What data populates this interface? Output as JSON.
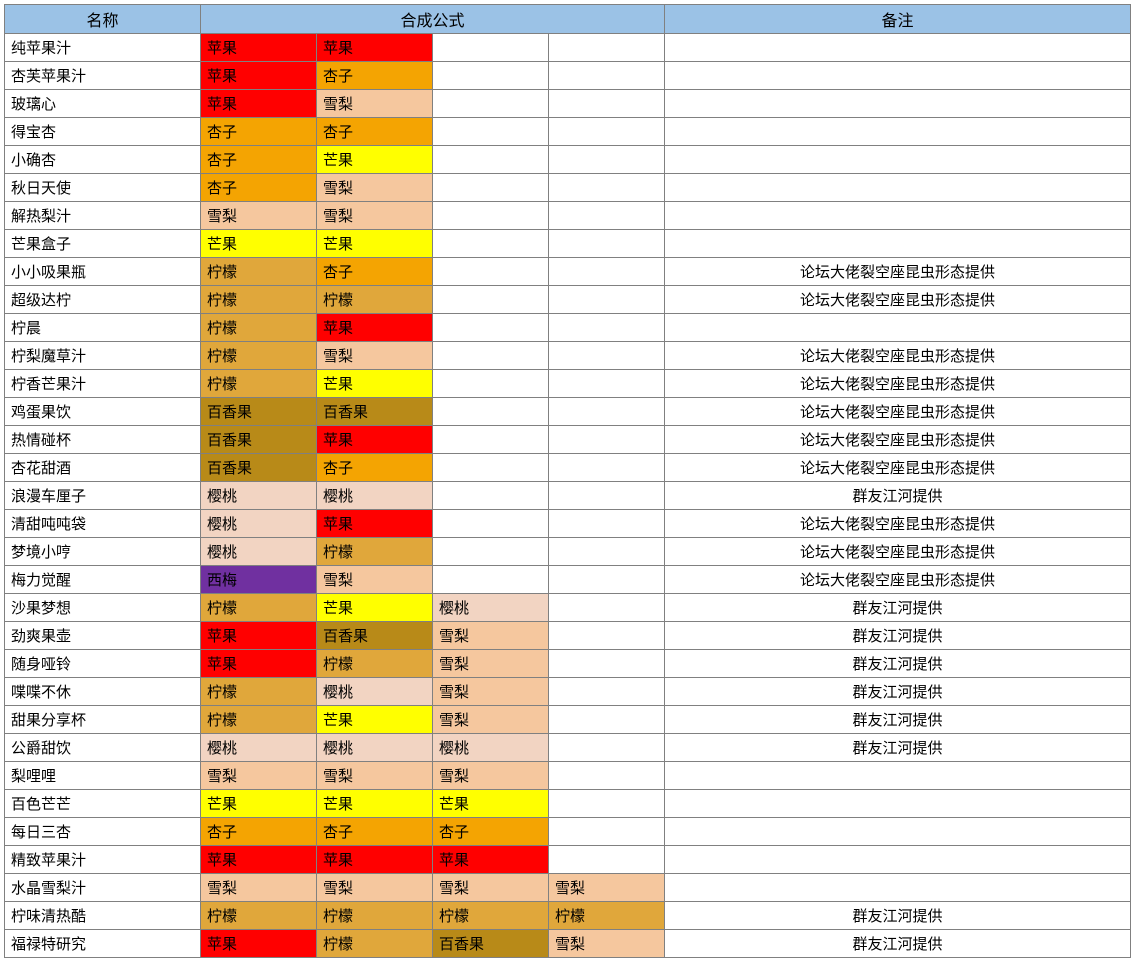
{
  "colors": {
    "header_bg": "#9bc2e6",
    "header_fg": "#000000",
    "row_bg": "#ffffff",
    "row_fg": "#000000",
    "border": "#808080"
  },
  "ingredient_colors": {
    "苹果": "#ff0000",
    "杏子": "#f4a402",
    "雪梨": "#f5c79e",
    "芒果": "#ffff00",
    "柠檬": "#e0a73b",
    "百香果": "#b88a18",
    "樱桃": "#f2d4c2",
    "西梅": "#7030a0"
  },
  "headers": {
    "name": "名称",
    "formula": "合成公式",
    "remark": "备注"
  },
  "remark_source_a": "论坛大佬裂空座昆虫形态提供",
  "remark_source_b": "群友江河提供",
  "rows": [
    {
      "name": "纯苹果汁",
      "ings": [
        "苹果",
        "苹果"
      ],
      "remark": ""
    },
    {
      "name": "杏芙苹果汁",
      "ings": [
        "苹果",
        "杏子"
      ],
      "remark": ""
    },
    {
      "name": "玻璃心",
      "ings": [
        "苹果",
        "雪梨"
      ],
      "remark": ""
    },
    {
      "name": "得宝杏",
      "ings": [
        "杏子",
        "杏子"
      ],
      "remark": ""
    },
    {
      "name": "小确杏",
      "ings": [
        "杏子",
        "芒果"
      ],
      "remark": ""
    },
    {
      "name": "秋日天使",
      "ings": [
        "杏子",
        "雪梨"
      ],
      "remark": ""
    },
    {
      "name": "解热梨汁",
      "ings": [
        "雪梨",
        "雪梨"
      ],
      "remark": ""
    },
    {
      "name": "芒果盒子",
      "ings": [
        "芒果",
        "芒果"
      ],
      "remark": ""
    },
    {
      "name": "小小吸果瓶",
      "ings": [
        "柠檬",
        "杏子"
      ],
      "remark": "论坛大佬裂空座昆虫形态提供"
    },
    {
      "name": "超级达柠",
      "ings": [
        "柠檬",
        "柠檬"
      ],
      "remark": "论坛大佬裂空座昆虫形态提供"
    },
    {
      "name": "柠晨",
      "ings": [
        "柠檬",
        "苹果"
      ],
      "remark": ""
    },
    {
      "name": "柠梨魔草汁",
      "ings": [
        "柠檬",
        "雪梨"
      ],
      "remark": "论坛大佬裂空座昆虫形态提供"
    },
    {
      "name": "柠香芒果汁",
      "ings": [
        "柠檬",
        "芒果"
      ],
      "remark": "论坛大佬裂空座昆虫形态提供"
    },
    {
      "name": "鸡蛋果饮",
      "ings": [
        "百香果",
        "百香果"
      ],
      "remark": "论坛大佬裂空座昆虫形态提供"
    },
    {
      "name": "热情碰杯",
      "ings": [
        "百香果",
        "苹果"
      ],
      "remark": "论坛大佬裂空座昆虫形态提供"
    },
    {
      "name": "杏花甜酒",
      "ings": [
        "百香果",
        "杏子"
      ],
      "remark": "论坛大佬裂空座昆虫形态提供"
    },
    {
      "name": "浪漫车厘子",
      "ings": [
        "樱桃",
        "樱桃"
      ],
      "remark": "群友江河提供"
    },
    {
      "name": "清甜吨吨袋",
      "ings": [
        "樱桃",
        "苹果"
      ],
      "remark": "论坛大佬裂空座昆虫形态提供"
    },
    {
      "name": "梦境小哼",
      "ings": [
        "樱桃",
        "柠檬"
      ],
      "remark": "论坛大佬裂空座昆虫形态提供"
    },
    {
      "name": "梅力觉醒",
      "ings": [
        "西梅",
        "雪梨"
      ],
      "remark": "论坛大佬裂空座昆虫形态提供"
    },
    {
      "name": "沙果梦想",
      "ings": [
        "柠檬",
        "芒果",
        "樱桃"
      ],
      "remark": "群友江河提供"
    },
    {
      "name": "劲爽果壶",
      "ings": [
        "苹果",
        "百香果",
        "雪梨"
      ],
      "remark": "群友江河提供"
    },
    {
      "name": "随身哑铃",
      "ings": [
        "苹果",
        "柠檬",
        "雪梨"
      ],
      "remark": "群友江河提供"
    },
    {
      "name": "喋喋不休",
      "ings": [
        "柠檬",
        "樱桃",
        "雪梨"
      ],
      "remark": "群友江河提供"
    },
    {
      "name": "甜果分享杯",
      "ings": [
        "柠檬",
        "芒果",
        "雪梨"
      ],
      "remark": "群友江河提供"
    },
    {
      "name": "公爵甜饮",
      "ings": [
        "樱桃",
        "樱桃",
        "樱桃"
      ],
      "remark": "群友江河提供"
    },
    {
      "name": "梨哩哩",
      "ings": [
        "雪梨",
        "雪梨",
        "雪梨"
      ],
      "remark": ""
    },
    {
      "name": "百色芒芒",
      "ings": [
        "芒果",
        "芒果",
        "芒果"
      ],
      "remark": ""
    },
    {
      "name": "每日三杏",
      "ings": [
        "杏子",
        "杏子",
        "杏子"
      ],
      "remark": ""
    },
    {
      "name": "精致苹果汁",
      "ings": [
        "苹果",
        "苹果",
        "苹果"
      ],
      "remark": ""
    },
    {
      "name": "水晶雪梨汁",
      "ings": [
        "雪梨",
        "雪梨",
        "雪梨",
        "雪梨"
      ],
      "remark": ""
    },
    {
      "name": "柠味清热酷",
      "ings": [
        "柠檬",
        "柠檬",
        "柠檬",
        "柠檬"
      ],
      "remark": "群友江河提供"
    },
    {
      "name": "福禄特研究",
      "ings": [
        "苹果",
        "柠檬",
        "百香果",
        "雪梨"
      ],
      "remark": "群友江河提供"
    }
  ]
}
